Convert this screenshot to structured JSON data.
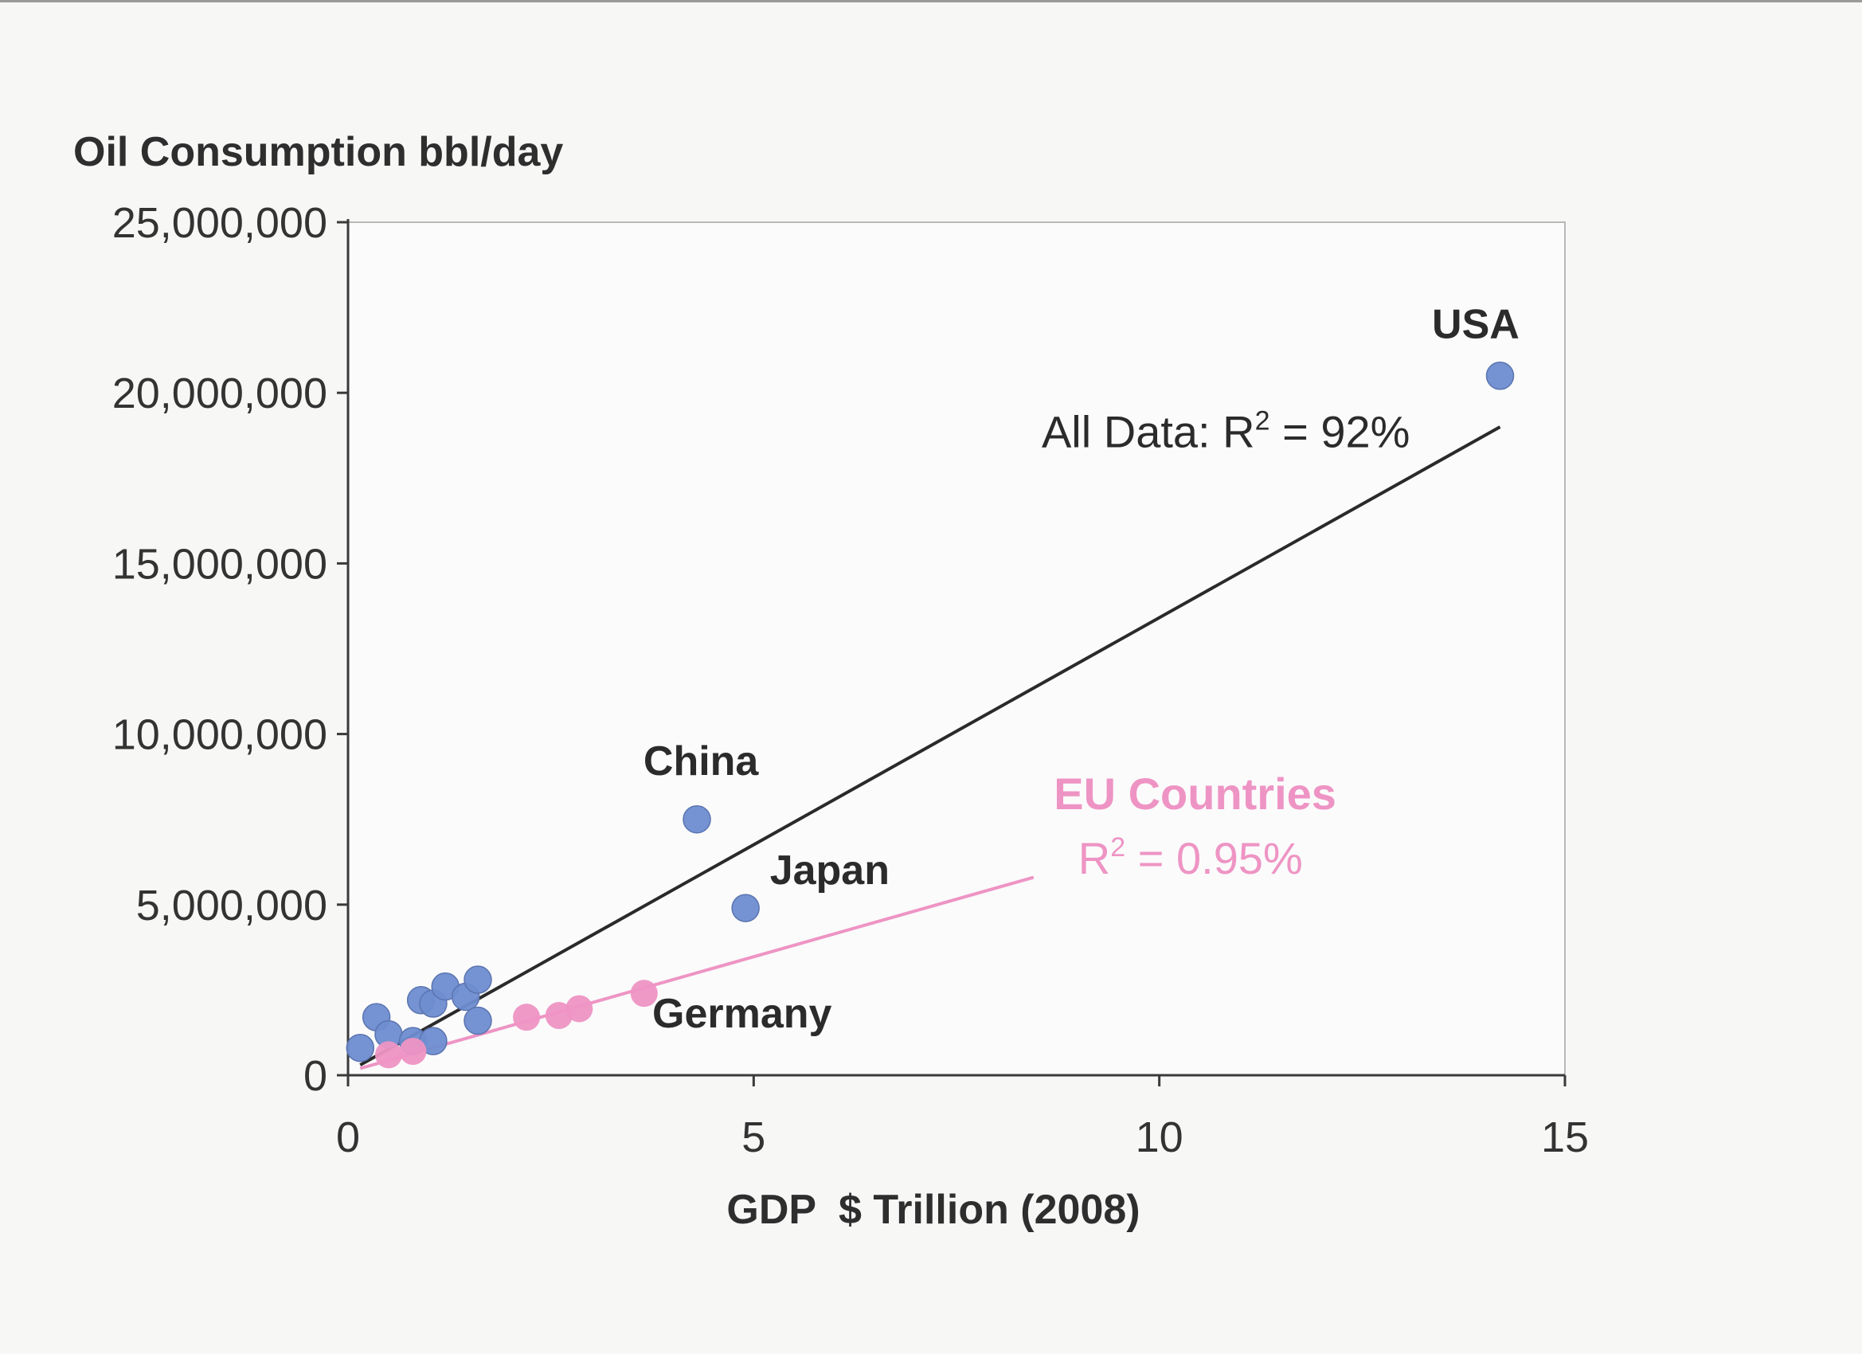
{
  "chart_data": {
    "type": "scatter",
    "title": "",
    "ylabel": "Oil Consumption bbl/day",
    "xlabel": "GDP  $ Trillion (2008)",
    "xlim": [
      0,
      15
    ],
    "ylim": [
      0,
      25000000
    ],
    "x_ticks": [
      {
        "value": 0,
        "label": "0"
      },
      {
        "value": 5,
        "label": "5"
      },
      {
        "value": 10,
        "label": "10"
      },
      {
        "value": 15,
        "label": "15"
      }
    ],
    "y_ticks": [
      {
        "value": 0,
        "label": "0"
      },
      {
        "value": 5000000,
        "label": "5,000,000"
      },
      {
        "value": 10000000,
        "label": "10,000,000"
      },
      {
        "value": 15000000,
        "label": "15,000,000"
      },
      {
        "value": 20000000,
        "label": "20,000,000"
      },
      {
        "value": 25000000,
        "label": "25,000,000"
      }
    ],
    "grid": false,
    "series": [
      {
        "color": "#6e8dd0",
        "points": [
          {
            "x": 14.2,
            "y": 20500000
          },
          {
            "x": 4.3,
            "y": 7500000
          },
          {
            "x": 4.9,
            "y": 4900000
          },
          {
            "x": 0.15,
            "y": 800000
          },
          {
            "x": 0.35,
            "y": 1700000
          },
          {
            "x": 0.5,
            "y": 1200000
          },
          {
            "x": 0.8,
            "y": 1000000
          },
          {
            "x": 0.9,
            "y": 2200000
          },
          {
            "x": 1.05,
            "y": 2100000
          },
          {
            "x": 1.2,
            "y": 2600000
          },
          {
            "x": 1.45,
            "y": 2300000
          },
          {
            "x": 1.6,
            "y": 2800000
          },
          {
            "x": 1.6,
            "y": 1600000
          },
          {
            "x": 1.05,
            "y": 1000000
          }
        ]
      },
      {
        "color": "#ee94c4",
        "points": [
          {
            "x": 3.65,
            "y": 2400000
          },
          {
            "x": 2.2,
            "y": 1700000
          },
          {
            "x": 2.6,
            "y": 1750000
          },
          {
            "x": 2.85,
            "y": 1950000
          },
          {
            "x": 0.5,
            "y": 600000
          },
          {
            "x": 0.8,
            "y": 700000
          }
        ]
      }
    ],
    "trendlines": [
      {
        "color": "#2a2a2a",
        "from": {
          "x": 0.15,
          "y": 300000
        },
        "to": {
          "x": 14.2,
          "y": 19000000
        }
      },
      {
        "color": "#ee94c4",
        "from": {
          "x": 0.15,
          "y": 200000
        },
        "to": {
          "x": 8.45,
          "y": 5800000
        }
      }
    ],
    "point_labels": [
      {
        "text": "USA",
        "x": 13.9,
        "y": 21600000,
        "anchor": "middle",
        "color": "#2b2b2b",
        "bold": true
      },
      {
        "text": "China",
        "x": 4.35,
        "y": 8800000,
        "anchor": "middle",
        "color": "#2b2b2b",
        "bold": true
      },
      {
        "text": "Japan",
        "x": 5.2,
        "y": 5600000,
        "anchor": "start",
        "color": "#2b2b2b",
        "bold": true
      },
      {
        "text": "Germany",
        "x": 3.75,
        "y": 1400000,
        "anchor": "start",
        "color": "#2b2b2b",
        "bold": true
      }
    ],
    "annotations": [
      {
        "text": "All Data: R",
        "sup": "2",
        "rest": " = 92%",
        "x": 8.55,
        "y": 18400000,
        "color": "#2b2b2b",
        "bold": false
      },
      {
        "text": "EU Countries",
        "sup": "",
        "rest": "",
        "x": 8.7,
        "y": 7800000,
        "color": "#ee94c4",
        "bold": true
      },
      {
        "text": "R",
        "sup": "2",
        "rest": " = 0.95%",
        "x": 9.0,
        "y": 5900000,
        "color": "#ee94c4",
        "bold": false
      }
    ]
  }
}
